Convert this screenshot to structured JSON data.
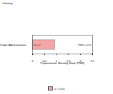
{
  "chart_data": {
    "type": "bar",
    "orientation": "horizontal",
    "y_label": "Industry",
    "x_label": "Proportionate Mortality Ratio (PMR)",
    "categories": [
      "Public Administration"
    ],
    "series": [
      {
        "name": "p > 0.05",
        "color": "#f4a6a6",
        "values": [
          0.94
        ]
      }
    ],
    "annotations": [
      "N = 17",
      "PMR = 0.94"
    ],
    "xlim": [
      0,
      2.5
    ],
    "xticks": [
      0,
      0.5,
      1,
      1.5,
      2,
      2.5
    ]
  }
}
